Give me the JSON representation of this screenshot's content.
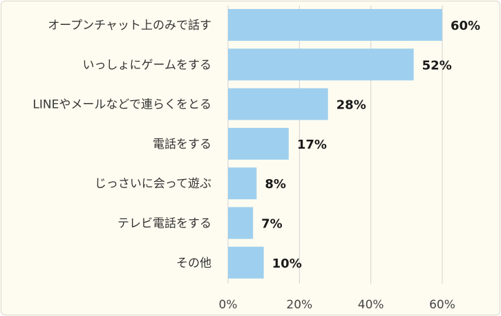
{
  "chart_data": {
    "type": "bar",
    "orientation": "horizontal",
    "title": "",
    "xlabel": "",
    "ylabel": "",
    "categories": [
      "オープンチャット上のみで話す",
      "いっしょにゲームをする",
      "LINEやメールなどで連らくをとる",
      "電話をする",
      "じっさいに会って遊ぶ",
      "テレビ電話をする",
      "その他"
    ],
    "values": [
      60,
      52,
      28,
      17,
      8,
      7,
      10
    ],
    "value_labels": [
      "60%",
      "52%",
      "28%",
      "17%",
      "8%",
      "7%",
      "10%"
    ],
    "xlim": [
      0,
      60
    ],
    "xticks": [
      0,
      20,
      40,
      60
    ],
    "xtick_labels": [
      "0%",
      "20%",
      "40%",
      "60%"
    ],
    "grid": true,
    "legend": "none",
    "colors": {
      "bar": "#9fcfee",
      "background": "#fefcf0",
      "grid": "#d0d0d0"
    }
  }
}
